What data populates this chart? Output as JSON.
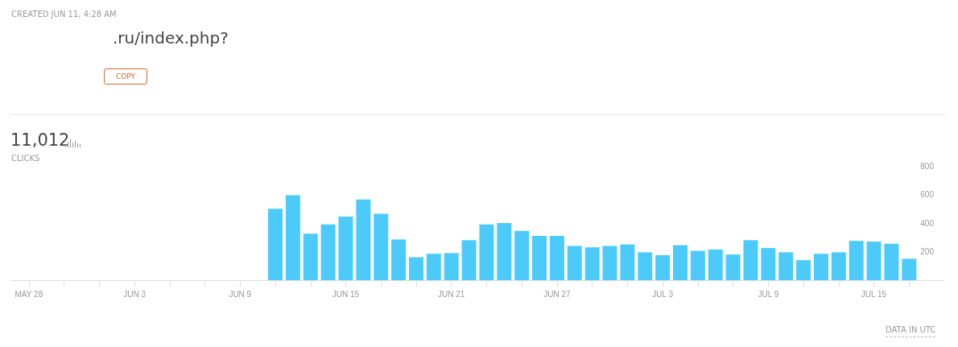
{
  "chart_data": {
    "type": "bar",
    "annotations": [
      "CREATED JUN 11, 4:28 AM",
      ".ru/index.php?",
      "COPY",
      "11,012",
      "CLICKS",
      "DATA IN UTC"
    ],
    "x": [
      "--06-11",
      "--06-12",
      "--06-13",
      "--06-14",
      "--06-15",
      "--06-16",
      "--06-17",
      "--06-18",
      "--06-19",
      "--06-20",
      "--06-21",
      "--06-22",
      "--06-23",
      "--06-24",
      "--06-25",
      "--06-26",
      "--06-27",
      "--06-28",
      "--06-29",
      "--06-30",
      "--07-01",
      "--07-02",
      "--07-03",
      "--07-04",
      "--07-05",
      "--07-06",
      "--07-07",
      "--07-08",
      "--07-09",
      "--07-10",
      "--07-11",
      "--07-12",
      "--07-13",
      "--07-14",
      "--07-15",
      "--07-16",
      "--07-17"
    ],
    "values": [
      500,
      595,
      325,
      390,
      445,
      565,
      465,
      285,
      160,
      185,
      190,
      280,
      390,
      400,
      345,
      310,
      310,
      240,
      230,
      240,
      250,
      195,
      175,
      245,
      205,
      215,
      180,
      280,
      225,
      195,
      140,
      185,
      195,
      275,
      270,
      255,
      150
    ],
    "color": "#4ccbfb",
    "xlim": [
      "--05-27",
      "--07-19"
    ],
    "xticks": [
      {
        "value": "--05-28",
        "label": "MAY 28"
      },
      {
        "value": "--05-30",
        "label": null
      },
      {
        "value": "--06-01",
        "label": null
      },
      {
        "value": "--06-03",
        "label": "JUN 3"
      },
      {
        "value": "--06-05",
        "label": null
      },
      {
        "value": "--06-07",
        "label": null
      },
      {
        "value": "--06-09",
        "label": "JUN 9"
      },
      {
        "value": "--06-11",
        "label": null
      },
      {
        "value": "--06-13",
        "label": null
      },
      {
        "value": "--06-15",
        "label": "JUN 15"
      },
      {
        "value": "--06-17",
        "label": null
      },
      {
        "value": "--06-19",
        "label": null
      },
      {
        "value": "--06-21",
        "label": "JUN 21"
      },
      {
        "value": "--06-23",
        "label": null
      },
      {
        "value": "--06-25",
        "label": null
      },
      {
        "value": "--06-27",
        "label": "JUN 27"
      },
      {
        "value": "--06-29",
        "label": null
      },
      {
        "value": "--07-01",
        "label": null
      },
      {
        "value": "--07-03",
        "label": "JUL 3"
      },
      {
        "value": "--07-05",
        "label": null
      },
      {
        "value": "--07-07",
        "label": null
      },
      {
        "value": "--07-09",
        "label": "JUL 9"
      },
      {
        "value": "--07-11",
        "label": null
      },
      {
        "value": "--07-13",
        "label": null
      },
      {
        "value": "--07-15",
        "label": "JUL 15"
      },
      {
        "value": "--07-17",
        "label": null
      }
    ],
    "ylim": [
      0,
      800
    ],
    "yticks": [
      200,
      400,
      600,
      800
    ],
    "grid": false
  }
}
